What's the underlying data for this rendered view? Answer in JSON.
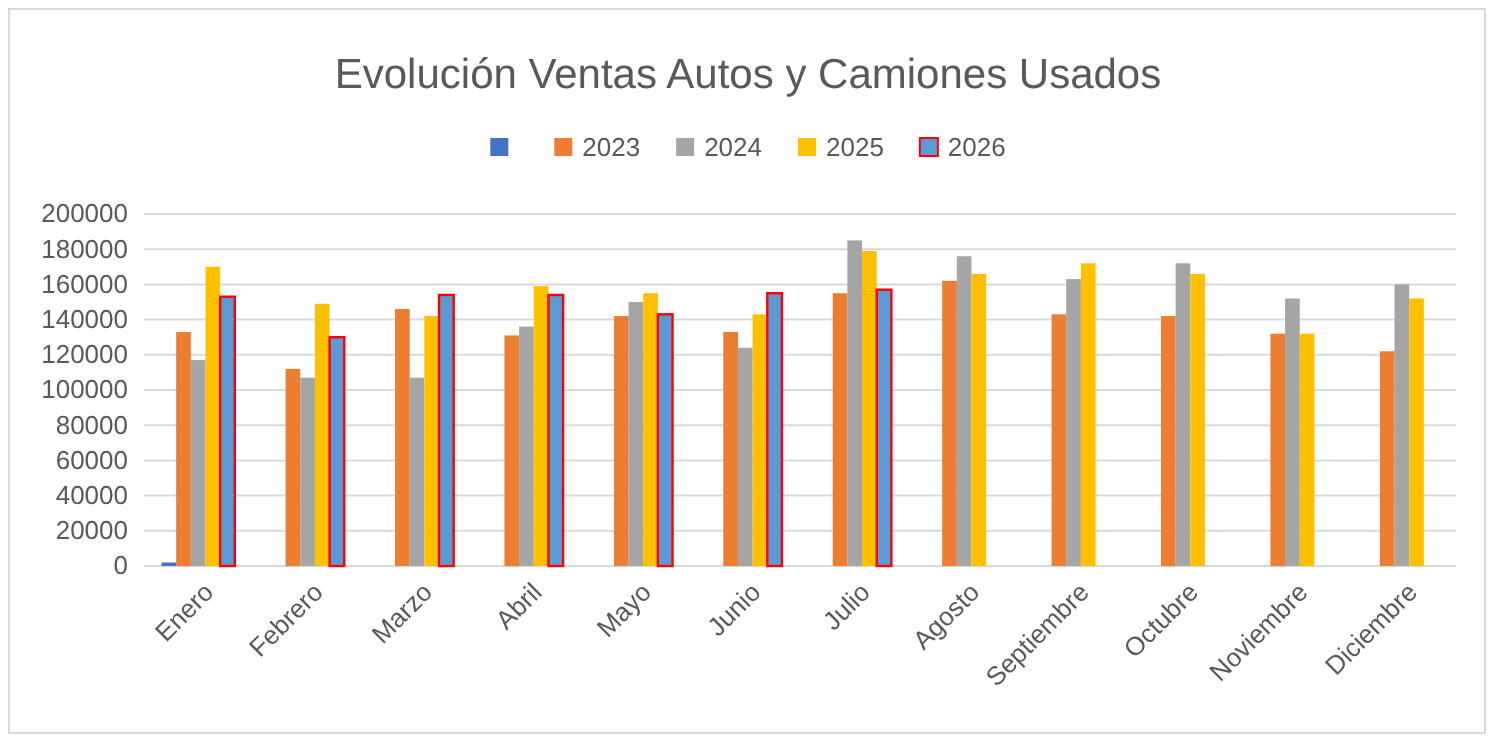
{
  "chart_data": {
    "type": "bar",
    "title": "Evolución Ventas Autos y Camiones Usados",
    "categories": [
      "Enero",
      "Febrero",
      "Marzo",
      "Abril",
      "Mayo",
      "Junio",
      "Julio",
      "Agosto",
      "Septiembre",
      "Octubre",
      "Noviembre",
      "Diciembre"
    ],
    "series": [
      {
        "color": "#4472c4",
        "values": [
          2000,
          null,
          null,
          null,
          null,
          null,
          null,
          null,
          null,
          null,
          null,
          null
        ]
      },
      {
        "name": "2023",
        "color": "#ed7d31",
        "values": [
          133000,
          112000,
          146000,
          131000,
          142000,
          133000,
          155000,
          162000,
          143000,
          142000,
          132000,
          122000
        ]
      },
      {
        "name": "2024",
        "color": "#a5a5a5",
        "values": [
          117000,
          107000,
          107000,
          136000,
          150000,
          124000,
          185000,
          176000,
          163000,
          172000,
          152000,
          160000
        ]
      },
      {
        "name": "2025",
        "color": "#ffc000",
        "values": [
          170000,
          149000,
          142000,
          159000,
          155000,
          143000,
          179000,
          166000,
          172000,
          166000,
          132000,
          152000
        ]
      },
      {
        "name": "2026",
        "color": "#5b9bd5",
        "values": [
          153000,
          130000,
          154000,
          154000,
          143000,
          155000,
          157000,
          null,
          null,
          null,
          null,
          null
        ]
      }
    ],
    "ylim": [
      0,
      200000
    ],
    "yticks": [
      0,
      20000,
      40000,
      60000,
      80000,
      100000,
      120000,
      140000,
      160000,
      180000,
      200000
    ],
    "grid": "y",
    "legend": "top"
  }
}
